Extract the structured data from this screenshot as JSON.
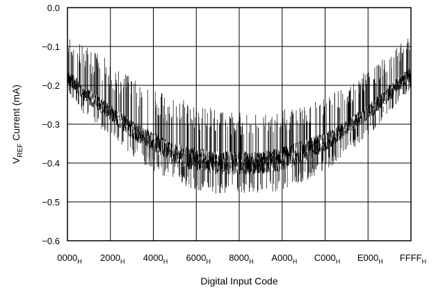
{
  "chart_data": {
    "type": "line",
    "title": "",
    "xlabel": "Digital Input Code",
    "ylabel": {
      "main": "V",
      "subscript": "REF",
      "rest": " Current (mA)"
    },
    "x_ticks": [
      {
        "base": "0000",
        "sub": "H",
        "code": 0
      },
      {
        "base": "2000",
        "sub": "H",
        "code": 8192
      },
      {
        "base": "4000",
        "sub": "H",
        "code": 16384
      },
      {
        "base": "6000",
        "sub": "H",
        "code": 24576
      },
      {
        "base": "8000",
        "sub": "H",
        "code": 32768
      },
      {
        "base": "A000",
        "sub": "H",
        "code": 40960
      },
      {
        "base": "C000",
        "sub": "H",
        "code": 49152
      },
      {
        "base": "E000",
        "sub": "H",
        "code": 57344
      },
      {
        "base": "FFFF",
        "sub": "H",
        "code": 65535
      }
    ],
    "y_ticks": [
      "0.0",
      "−0.1",
      "−0.2",
      "−0.3",
      "−0.4",
      "−0.5",
      "−0.6"
    ],
    "xlim": [
      0,
      65535
    ],
    "ylim": [
      -0.6,
      0.0
    ],
    "grid": true,
    "series": [
      {
        "color": "#000000",
        "envelope": {
          "x": [
            0,
            4096,
            8192,
            12288,
            16384,
            20480,
            24576,
            28672,
            32768,
            36864,
            40960,
            45056,
            49152,
            53248,
            57344,
            61440,
            65535
          ],
          "upper": [
            -0.07,
            -0.1,
            -0.14,
            -0.18,
            -0.21,
            -0.23,
            -0.25,
            -0.26,
            -0.27,
            -0.27,
            -0.26,
            -0.25,
            -0.23,
            -0.2,
            -0.16,
            -0.11,
            -0.07
          ],
          "lower": [
            -0.22,
            -0.29,
            -0.33,
            -0.38,
            -0.42,
            -0.45,
            -0.47,
            -0.48,
            -0.48,
            -0.48,
            -0.47,
            -0.45,
            -0.42,
            -0.38,
            -0.33,
            -0.27,
            -0.21
          ],
          "core_upper": [
            -0.16,
            -0.21,
            -0.25,
            -0.29,
            -0.32,
            -0.35,
            -0.36,
            -0.37,
            -0.37,
            -0.37,
            -0.36,
            -0.34,
            -0.32,
            -0.29,
            -0.25,
            -0.2,
            -0.15
          ],
          "core_lower": [
            -0.2,
            -0.25,
            -0.29,
            -0.34,
            -0.37,
            -0.41,
            -0.42,
            -0.43,
            -0.43,
            -0.43,
            -0.42,
            -0.4,
            -0.37,
            -0.33,
            -0.29,
            -0.24,
            -0.19
          ]
        }
      }
    ]
  }
}
